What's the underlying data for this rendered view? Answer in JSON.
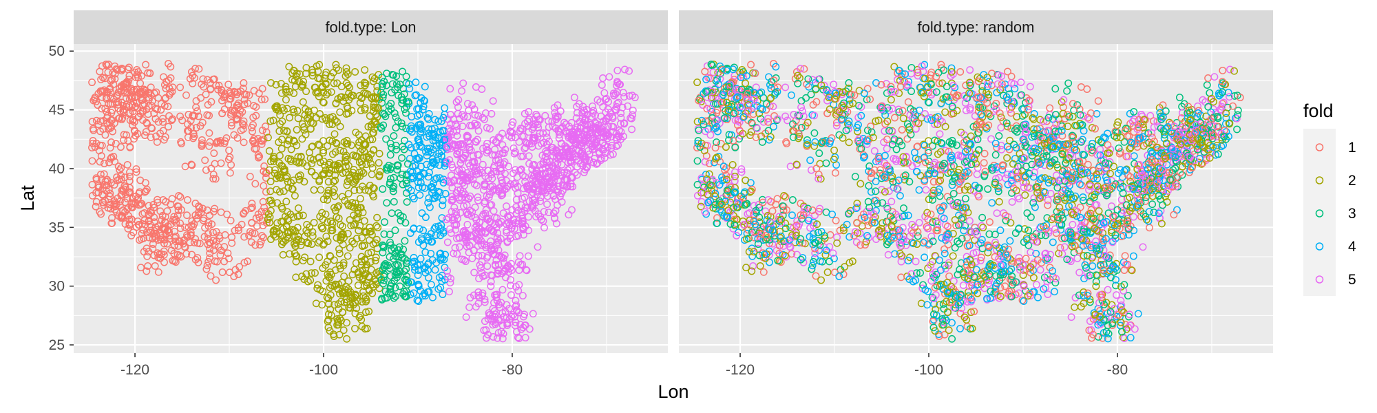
{
  "chart_data": {
    "type": "scatter",
    "xlabel": "Lon",
    "ylabel": "Lat",
    "xlim": [
      -126.5,
      -63.5
    ],
    "ylim": [
      24.3,
      50.6
    ],
    "x_ticks": [
      -120,
      -100,
      -80
    ],
    "y_ticks": [
      25,
      30,
      35,
      40,
      45,
      50
    ],
    "x_tick_labels": [
      "-120",
      "-100",
      "-80"
    ],
    "y_tick_labels": [
      "25",
      "30",
      "35",
      "40",
      "45",
      "50"
    ],
    "grid": true,
    "marker": "open-circle",
    "facet_variable": "fold.type",
    "panels": [
      {
        "strip": "fold.type: Lon",
        "assignment": "longitude-bands"
      },
      {
        "strip": "fold.type: random",
        "assignment": "random"
      }
    ],
    "lon_band_edges": [
      -106,
      -94,
      -91,
      -87
    ],
    "legend": {
      "title": "fold",
      "position": "right",
      "entries": [
        {
          "name": "1",
          "color": "#F8766D"
        },
        {
          "name": "2",
          "color": "#A3A500"
        },
        {
          "name": "3",
          "color": "#00BF7D"
        },
        {
          "name": "4",
          "color": "#00B0F6"
        },
        {
          "name": "5",
          "color": "#E76BF3"
        }
      ]
    },
    "sample_points": [
      [
        -124.2,
        48.3
      ],
      [
        -123.1,
        47.2
      ],
      [
        -122.3,
        47.6
      ],
      [
        -120.5,
        46.6
      ],
      [
        -117.4,
        47.7
      ],
      [
        -119.5,
        45.8
      ],
      [
        -121.7,
        45.5
      ],
      [
        -123.0,
        44.9
      ],
      [
        -121.3,
        44.0
      ],
      [
        -118.8,
        44.3
      ],
      [
        -123.8,
        42.4
      ],
      [
        -122.4,
        41.0
      ],
      [
        -121.5,
        38.6
      ],
      [
        -122.4,
        37.8
      ],
      [
        -121.9,
        37.3
      ],
      [
        -120.7,
        36.6
      ],
      [
        -119.8,
        36.7
      ],
      [
        -119.0,
        35.4
      ],
      [
        -118.2,
        34.1
      ],
      [
        -117.2,
        32.7
      ],
      [
        -116.5,
        33.8
      ],
      [
        -115.3,
        36.2
      ],
      [
        -114.6,
        35.2
      ],
      [
        -112.1,
        33.5
      ],
      [
        -110.9,
        32.2
      ],
      [
        -111.7,
        35.2
      ],
      [
        -112.0,
        40.8
      ],
      [
        -111.9,
        43.5
      ],
      [
        -116.2,
        43.6
      ],
      [
        -113.9,
        46.9
      ],
      [
        -111.0,
        45.7
      ],
      [
        -108.5,
        45.8
      ],
      [
        -107.0,
        44.8
      ],
      [
        -106.4,
        42.9
      ],
      [
        -104.8,
        41.1
      ],
      [
        -105.0,
        39.7
      ],
      [
        -104.6,
        38.3
      ],
      [
        -106.6,
        35.1
      ],
      [
        -105.9,
        35.7
      ],
      [
        -103.2,
        34.4
      ],
      [
        -101.9,
        33.6
      ],
      [
        -101.8,
        35.2
      ],
      [
        -100.4,
        31.5
      ],
      [
        -98.5,
        29.4
      ],
      [
        -97.7,
        30.3
      ],
      [
        -97.3,
        32.8
      ],
      [
        -97.5,
        35.5
      ],
      [
        -99.3,
        38.9
      ],
      [
        -97.3,
        37.7
      ],
      [
        -100.8,
        41.1
      ],
      [
        -98.3,
        40.9
      ],
      [
        -96.7,
        40.8
      ],
      [
        -103.2,
        44.1
      ],
      [
        -100.3,
        44.4
      ],
      [
        -96.7,
        43.5
      ],
      [
        -101.3,
        48.2
      ],
      [
        -96.8,
        46.9
      ],
      [
        -98.7,
        47.5
      ],
      [
        -102.8,
        46.9
      ],
      [
        -97.4,
        27.8
      ],
      [
        -98.2,
        26.2
      ],
      [
        -96.1,
        35.0
      ],
      [
        -95.4,
        29.8
      ],
      [
        -94.6,
        39.1
      ],
      [
        -93.6,
        41.6
      ],
      [
        -93.3,
        44.9
      ],
      [
        -94.2,
        46.3
      ],
      [
        -92.1,
        46.8
      ],
      [
        -93.7,
        32.5
      ],
      [
        -92.3,
        34.7
      ],
      [
        -93.2,
        30.2
      ],
      [
        -92.0,
        38.6
      ],
      [
        -91.5,
        44.8
      ],
      [
        -91.2,
        30.5
      ],
      [
        -90.2,
        38.6
      ],
      [
        -90.1,
        30.0
      ],
      [
        -90.2,
        32.3
      ],
      [
        -89.4,
        43.1
      ],
      [
        -88.0,
        43.0
      ],
      [
        -89.6,
        39.8
      ],
      [
        -88.2,
        41.9
      ],
      [
        -87.6,
        41.9
      ],
      [
        -88.1,
        30.7
      ],
      [
        -86.8,
        33.5
      ],
      [
        -86.8,
        36.2
      ],
      [
        -85.8,
        38.3
      ],
      [
        -86.2,
        39.8
      ],
      [
        -85.7,
        42.9
      ],
      [
        -84.5,
        39.1
      ],
      [
        -84.4,
        33.8
      ],
      [
        -83.0,
        40.0
      ],
      [
        -83.0,
        42.3
      ],
      [
        -84.6,
        45.6
      ],
      [
        -82.5,
        27.9
      ],
      [
        -81.4,
        28.5
      ],
      [
        -80.2,
        25.8
      ],
      [
        -80.1,
        26.7
      ],
      [
        -81.7,
        30.3
      ],
      [
        -81.1,
        32.1
      ],
      [
        -80.8,
        35.2
      ],
      [
        -79.9,
        32.8
      ],
      [
        -78.6,
        35.8
      ],
      [
        -77.4,
        37.5
      ],
      [
        -76.3,
        36.9
      ],
      [
        -77.0,
        38.9
      ],
      [
        -76.6,
        39.3
      ],
      [
        -75.2,
        40.0
      ],
      [
        -79.9,
        40.4
      ],
      [
        -77.6,
        43.2
      ],
      [
        -78.9,
        42.9
      ],
      [
        -76.1,
        43.0
      ],
      [
        -73.8,
        42.7
      ],
      [
        -74.0,
        40.7
      ],
      [
        -72.7,
        41.8
      ],
      [
        -71.4,
        41.8
      ],
      [
        -71.1,
        42.4
      ],
      [
        -72.6,
        42.1
      ],
      [
        -71.5,
        43.0
      ],
      [
        -73.2,
        44.5
      ],
      [
        -70.3,
        43.7
      ],
      [
        -68.8,
        44.8
      ],
      [
        -68.0,
        46.8
      ],
      [
        -69.8,
        44.3
      ],
      [
        -75.5,
        39.7
      ],
      [
        -74.8,
        40.2
      ],
      [
        -80.6,
        38.3
      ],
      [
        -81.6,
        38.4
      ],
      [
        -82.4,
        34.9
      ],
      [
        -83.9,
        35.9
      ],
      [
        -85.3,
        35.0
      ]
    ]
  }
}
